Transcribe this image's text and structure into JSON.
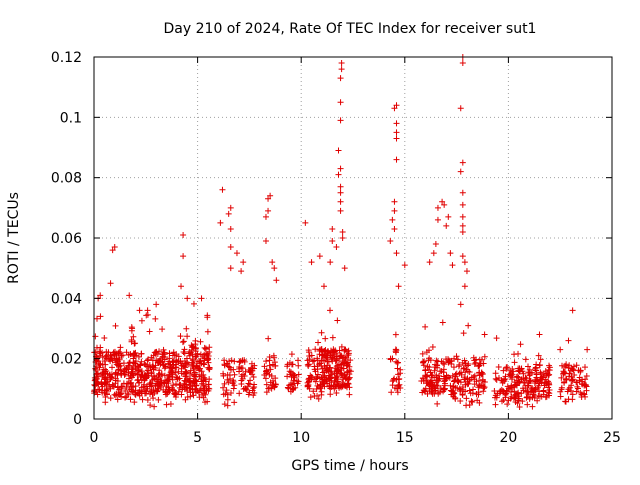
{
  "chart_data": {
    "type": "scatter",
    "title": "Day 210 of 2024, Rate Of TEC Index for receiver sut1",
    "xlabel": "GPS time / hours",
    "ylabel": "ROTI / TECUs",
    "xlim": [
      0,
      25
    ],
    "ylim": [
      0,
      0.12
    ],
    "x_ticks": [
      0,
      5,
      10,
      15,
      20,
      25
    ],
    "y_ticks": [
      0,
      0.02,
      0.04,
      0.06,
      0.08,
      0.1,
      0.12
    ],
    "x_tick_labels": [
      "0",
      "5",
      "10",
      "15",
      "20",
      "25"
    ],
    "y_tick_labels": [
      "0",
      "0.02",
      "0.04",
      "0.06",
      "0.08",
      "0.1",
      "0.12"
    ],
    "grid": true,
    "marker": "plus",
    "color": "#e00000",
    "clusters": [
      {
        "x": [
          0.0,
          4.6
        ],
        "y_range": [
          0.004,
          0.03
        ],
        "density": 6
      },
      {
        "x": [
          4.6,
          5.6
        ],
        "y_range": [
          0.004,
          0.034
        ],
        "density": 7
      },
      {
        "x": [
          6.2,
          6.8
        ],
        "y_range": [
          0.004,
          0.026
        ],
        "density": 3
      },
      {
        "x": [
          7.0,
          7.8
        ],
        "y_range": [
          0.004,
          0.025
        ],
        "density": 3
      },
      {
        "x": [
          8.2,
          8.8
        ],
        "y_range": [
          0.006,
          0.026
        ],
        "density": 3
      },
      {
        "x": [
          9.3,
          9.9
        ],
        "y_range": [
          0.006,
          0.024
        ],
        "density": 3
      },
      {
        "x": [
          10.3,
          12.4
        ],
        "y_range": [
          0.006,
          0.03
        ],
        "density": 6
      },
      {
        "x": [
          14.3,
          14.8
        ],
        "y_range": [
          0.006,
          0.03
        ],
        "density": 3
      },
      {
        "x": [
          15.8,
          18.9
        ],
        "y_range": [
          0.004,
          0.026
        ],
        "density": 4
      },
      {
        "x": [
          19.3,
          22.0
        ],
        "y_range": [
          0.003,
          0.022
        ],
        "density": 4
      },
      {
        "x": [
          22.5,
          23.8
        ],
        "y_range": [
          0.004,
          0.022
        ],
        "density": 3
      }
    ],
    "points": [
      [
        0.2,
        0.04
      ],
      [
        0.3,
        0.041
      ],
      [
        0.8,
        0.045
      ],
      [
        0.9,
        0.056
      ],
      [
        1.0,
        0.057
      ],
      [
        1.7,
        0.041
      ],
      [
        2.2,
        0.036
      ],
      [
        3.0,
        0.038
      ],
      [
        4.2,
        0.044
      ],
      [
        4.3,
        0.054
      ],
      [
        4.3,
        0.061
      ],
      [
        4.5,
        0.04
      ],
      [
        6.1,
        0.065
      ],
      [
        6.2,
        0.076
      ],
      [
        6.5,
        0.068
      ],
      [
        6.6,
        0.07
      ],
      [
        6.6,
        0.063
      ],
      [
        6.6,
        0.057
      ],
      [
        6.6,
        0.05
      ],
      [
        6.9,
        0.055
      ],
      [
        7.1,
        0.049
      ],
      [
        7.2,
        0.052
      ],
      [
        8.3,
        0.059
      ],
      [
        8.3,
        0.067
      ],
      [
        8.4,
        0.069
      ],
      [
        8.4,
        0.073
      ],
      [
        8.5,
        0.074
      ],
      [
        8.6,
        0.052
      ],
      [
        8.7,
        0.05
      ],
      [
        8.8,
        0.046
      ],
      [
        10.2,
        0.065
      ],
      [
        10.5,
        0.052
      ],
      [
        10.9,
        0.054
      ],
      [
        11.1,
        0.044
      ],
      [
        11.4,
        0.052
      ],
      [
        11.5,
        0.059
      ],
      [
        11.5,
        0.063
      ],
      [
        11.7,
        0.057
      ],
      [
        11.8,
        0.081
      ],
      [
        11.8,
        0.089
      ],
      [
        11.9,
        0.069
      ],
      [
        11.9,
        0.072
      ],
      [
        11.9,
        0.075
      ],
      [
        11.9,
        0.077
      ],
      [
        11.9,
        0.083
      ],
      [
        11.9,
        0.099
      ],
      [
        11.9,
        0.105
      ],
      [
        11.9,
        0.113
      ],
      [
        11.95,
        0.116
      ],
      [
        11.95,
        0.118
      ],
      [
        12.0,
        0.06
      ],
      [
        12.0,
        0.062
      ],
      [
        12.1,
        0.05
      ],
      [
        14.3,
        0.059
      ],
      [
        14.4,
        0.066
      ],
      [
        14.5,
        0.072
      ],
      [
        14.5,
        0.069
      ],
      [
        14.5,
        0.063
      ],
      [
        14.6,
        0.086
      ],
      [
        14.6,
        0.093
      ],
      [
        14.6,
        0.095
      ],
      [
        14.6,
        0.098
      ],
      [
        14.6,
        0.104
      ],
      [
        14.5,
        0.103
      ],
      [
        14.6,
        0.055
      ],
      [
        14.7,
        0.044
      ],
      [
        15.0,
        0.051
      ],
      [
        16.2,
        0.052
      ],
      [
        16.4,
        0.055
      ],
      [
        16.5,
        0.058
      ],
      [
        16.6,
        0.066
      ],
      [
        16.6,
        0.07
      ],
      [
        16.8,
        0.072
      ],
      [
        16.9,
        0.071
      ],
      [
        17.0,
        0.064
      ],
      [
        17.1,
        0.067
      ],
      [
        17.2,
        0.055
      ],
      [
        17.3,
        0.051
      ],
      [
        17.7,
        0.082
      ],
      [
        17.8,
        0.085
      ],
      [
        17.8,
        0.075
      ],
      [
        17.8,
        0.071
      ],
      [
        17.8,
        0.067
      ],
      [
        17.8,
        0.064
      ],
      [
        17.8,
        0.062
      ],
      [
        17.8,
        0.054
      ],
      [
        17.9,
        0.052
      ],
      [
        17.7,
        0.103
      ],
      [
        17.8,
        0.118
      ],
      [
        17.8,
        0.12
      ],
      [
        18.0,
        0.049
      ],
      [
        17.9,
        0.044
      ],
      [
        17.7,
        0.038
      ],
      [
        21.5,
        0.028
      ],
      [
        22.5,
        0.023
      ],
      [
        22.9,
        0.026
      ],
      [
        23.1,
        0.036
      ],
      [
        23.8,
        0.023
      ]
    ]
  }
}
